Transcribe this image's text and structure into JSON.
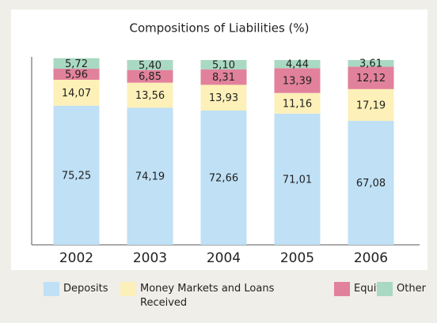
{
  "chart_data": {
    "type": "stacked_bar",
    "title": "Compositions of Liabilities (%)",
    "categories": [
      "2002",
      "2003",
      "2004",
      "2005",
      "2006"
    ],
    "ylim": [
      0,
      100
    ],
    "series": [
      {
        "name": "Deposits",
        "color": "#bfe0f5",
        "values": [
          75.25,
          74.19,
          72.66,
          71.01,
          67.08
        ],
        "value_labels": [
          "75,25",
          "74,19",
          "72,66",
          "71,01",
          "67,08"
        ]
      },
      {
        "name": "Money Markets and Loans Received",
        "color": "#fdf0b8",
        "values": [
          14.07,
          13.56,
          13.93,
          11.16,
          17.19
        ],
        "value_labels": [
          "14,07",
          "13,56",
          "13,93",
          "11,16",
          "17,19"
        ]
      },
      {
        "name": "Equity",
        "color": "#e2819b",
        "values": [
          5.96,
          6.85,
          8.31,
          13.39,
          12.12
        ],
        "value_labels": [
          "5,96",
          "6,85",
          "8,31",
          "13,39",
          "12,12"
        ]
      },
      {
        "name": "Other",
        "color": "#a9d9c2",
        "values": [
          5.72,
          5.4,
          5.1,
          4.44,
          3.61
        ],
        "value_labels": [
          "5,72",
          "5,40",
          "5,10",
          "4,44",
          "3,61"
        ]
      }
    ]
  }
}
